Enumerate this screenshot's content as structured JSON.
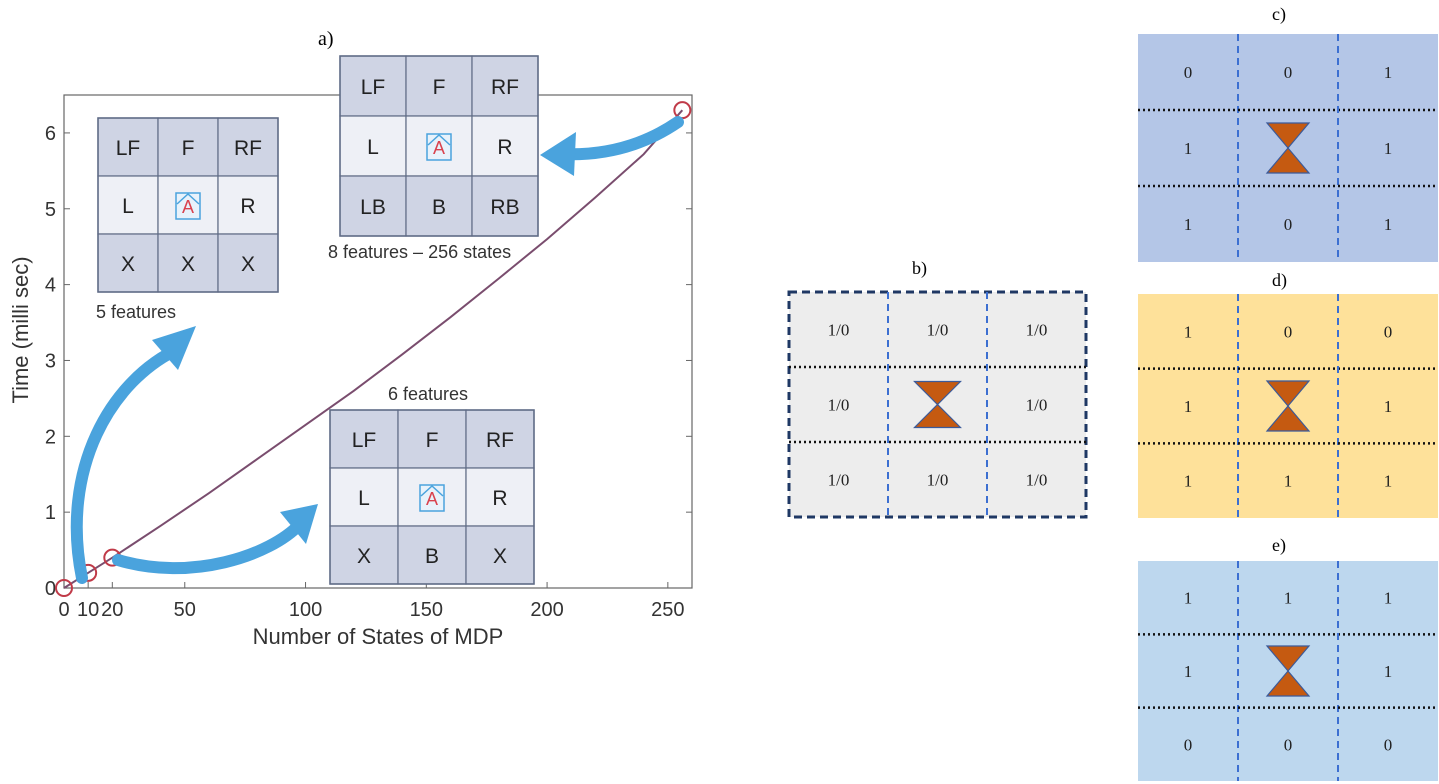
{
  "panel_a": {
    "label": "a)",
    "chart_data": {
      "type": "line",
      "xlabel": "Number of States of MDP",
      "ylabel": "Time (milli sec)",
      "xlim": [
        0,
        260
      ],
      "ylim": [
        0,
        6.5
      ],
      "x_ticks": [
        "0",
        "10",
        "20",
        "50",
        "100",
        "150",
        "200",
        "250"
      ],
      "y_ticks": [
        "0",
        "1",
        "2",
        "3",
        "4",
        "5",
        "6"
      ],
      "series": [
        {
          "x": [
            0,
            10,
            20,
            40,
            60,
            80,
            100,
            120,
            140,
            160,
            180,
            200,
            220,
            240,
            256
          ],
          "y": [
            0,
            0.2,
            0.4,
            0.82,
            1.25,
            1.7,
            2.15,
            2.6,
            3.08,
            3.57,
            4.08,
            4.6,
            5.15,
            5.72,
            6.3
          ]
        }
      ],
      "markers": [
        {
          "x": 0,
          "y": 0
        },
        {
          "x": 10,
          "y": 0.2
        },
        {
          "x": 20,
          "y": 0.4
        },
        {
          "x": 256,
          "y": 6.3
        }
      ],
      "grid": false,
      "line_color": "#7a4d6e",
      "marker_color": "#c03a48"
    },
    "insets": {
      "five": {
        "caption": "5 features",
        "cells": [
          "LF",
          "F",
          "RF",
          "L",
          "A",
          "R",
          "X",
          "X",
          "X"
        ]
      },
      "eight": {
        "caption": "8 features – 256 states",
        "cells": [
          "LF",
          "F",
          "RF",
          "L",
          "A",
          "R",
          "LB",
          "B",
          "RB"
        ]
      },
      "six": {
        "caption": "6 features",
        "cells": [
          "LF",
          "F",
          "RF",
          "L",
          "A",
          "R",
          "X",
          "B",
          "X"
        ]
      }
    },
    "arrow_color": "#4aa3dd"
  },
  "panel_b": {
    "label": "b)",
    "cells": [
      "1/0",
      "1/0",
      "1/0",
      "1/0",
      "",
      "1/0",
      "1/0",
      "1/0",
      "1/0"
    ],
    "bg": "#ededed"
  },
  "panel_c": {
    "label": "c)",
    "cells": [
      "0",
      "0",
      "1",
      "1",
      "",
      "1",
      "1",
      "0",
      "1"
    ],
    "bg": "#b4c6e7"
  },
  "panel_d": {
    "label": "d)",
    "cells": [
      "1",
      "0",
      "0",
      "1",
      "",
      "1",
      "1",
      "1",
      "1"
    ],
    "bg": "#fee19a"
  },
  "panel_e": {
    "label": "e)",
    "cells": [
      "1",
      "1",
      "1",
      "1",
      "",
      "1",
      "0",
      "0",
      "0"
    ],
    "bg": "#bdd7ee"
  },
  "agent_color": "#c55a11"
}
